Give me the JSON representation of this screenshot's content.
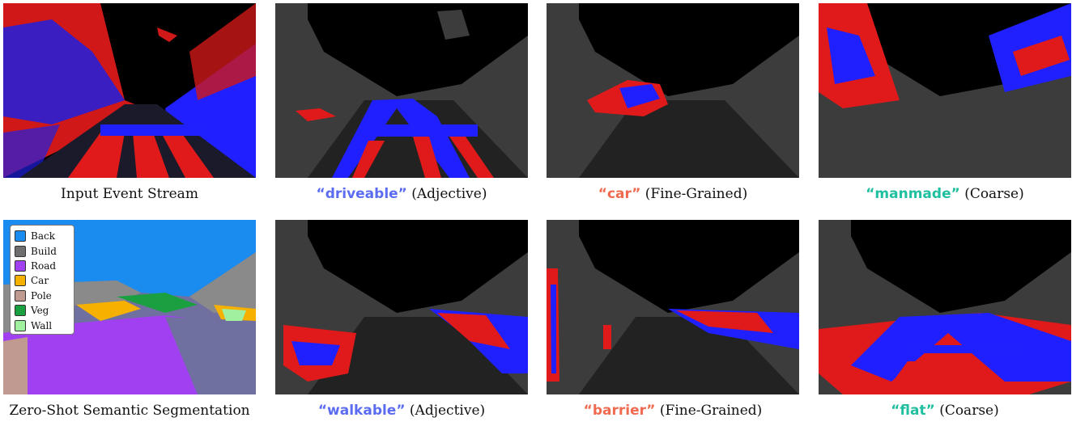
{
  "colors": {
    "event_red": "#ff1a1a",
    "event_blue": "#1f1fff",
    "background_dark": "#000000",
    "masked_gray": "#3c3c3c",
    "adjective_query": "#5b6cf0",
    "fine_grained_query": "#f06a50",
    "coarse_query": "#1fbf9f"
  },
  "captions": {
    "input": "Input Event Stream",
    "segmentation": "Zero-Shot Semantic Segmentation"
  },
  "queries": [
    {
      "term": "“driveable”",
      "type": "(Adjective)",
      "color": "#5b6cf0"
    },
    {
      "term": "“car”",
      "type": "(Fine-Grained)",
      "color": "#f06a50"
    },
    {
      "term": "“manmade”",
      "type": "(Coarse)",
      "color": "#1fbf9f"
    },
    {
      "term": "“walkable”",
      "type": "(Adjective)",
      "color": "#5b6cf0"
    },
    {
      "term": "“barrier”",
      "type": "(Fine-Grained)",
      "color": "#f06a50"
    },
    {
      "term": "“flat”",
      "type": "(Coarse)",
      "color": "#1fbf9f"
    }
  ],
  "legend": [
    {
      "label": "Back",
      "color": "#1a8cf0"
    },
    {
      "label": "Build",
      "color": "#6e6e6e"
    },
    {
      "label": "Road",
      "color": "#a040f0"
    },
    {
      "label": "Car",
      "color": "#f5b000"
    },
    {
      "label": "Pole",
      "color": "#c09a90"
    },
    {
      "label": "Veg",
      "color": "#1aa040"
    },
    {
      "label": "Wall",
      "color": "#a0f0a0"
    }
  ]
}
